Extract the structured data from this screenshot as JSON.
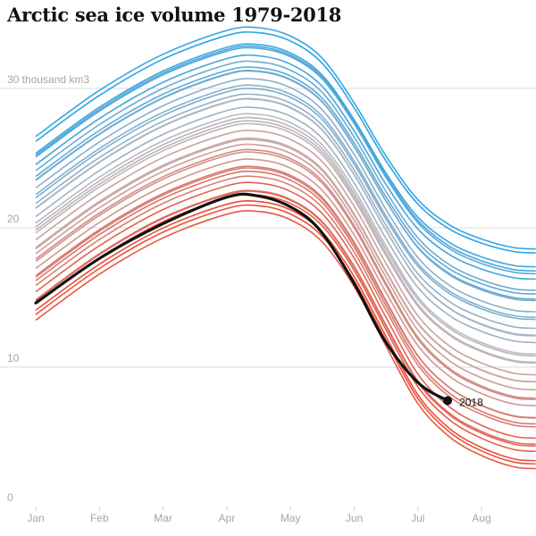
{
  "chart_data": {
    "type": "line",
    "title": "Arctic sea ice volume 1979-2018",
    "xlabel": "",
    "ylabel": "",
    "ylim": [
      0,
      33
    ],
    "yticks": [
      0,
      10,
      20,
      30
    ],
    "ytick_labels": [
      "0",
      "10",
      "20",
      "30 thousand km3"
    ],
    "x_categories": [
      "Jan",
      "Feb",
      "Mar",
      "Apr",
      "May",
      "Jun",
      "Jul",
      "Aug"
    ],
    "grid": true,
    "highlight_label": "2018",
    "colors": {
      "oldest": "#2ea3e3",
      "middle": "#c2b8bb",
      "newest": "#ec4c36",
      "highlight": "#111111",
      "grid": "#dcdcdc"
    },
    "years": [
      1979,
      2018
    ],
    "highlight_series": {
      "name": "2018",
      "x": [
        "Jan 1",
        "Feb 1",
        "Mar 1",
        "Apr 1",
        "Apr 15",
        "May 1",
        "May 15",
        "Jun 1",
        "Jun 15",
        "Jul 1",
        "Jul 15"
      ],
      "values": [
        14.6,
        17.8,
        20.3,
        22.2,
        22.3,
        21.5,
        19.8,
        16.0,
        12.0,
        8.9,
        7.6
      ]
    }
  }
}
